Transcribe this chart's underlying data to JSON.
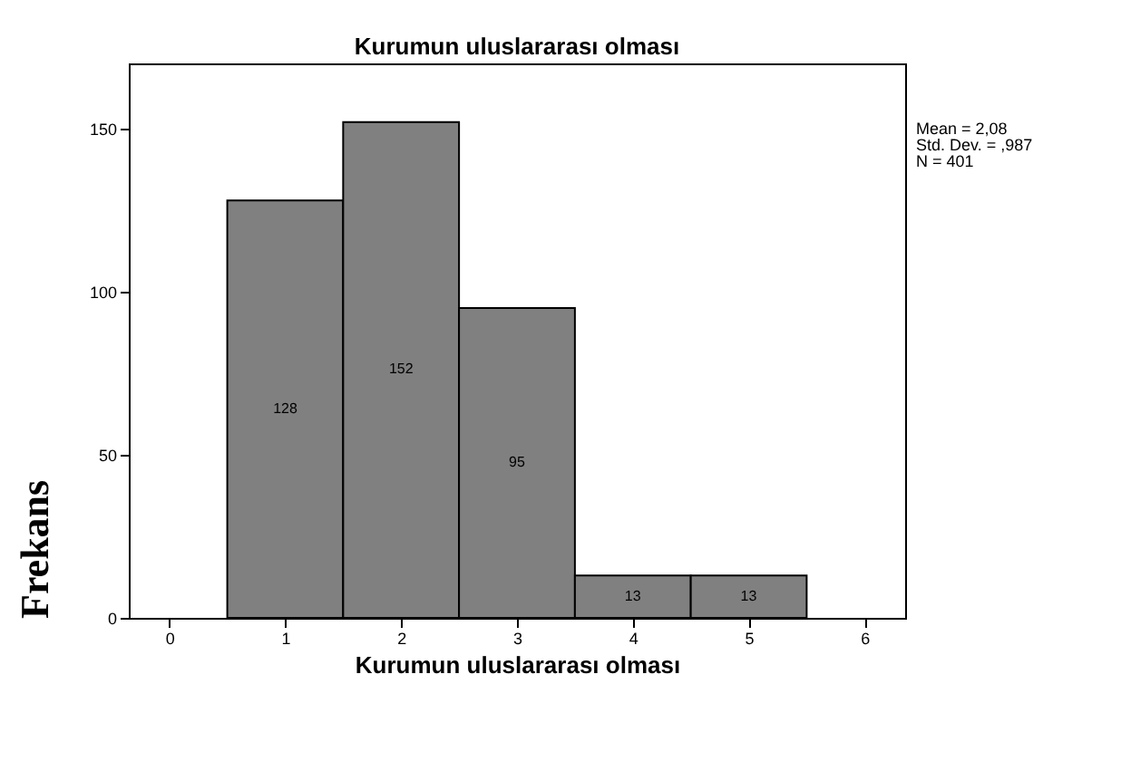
{
  "chart_data": {
    "type": "histogram",
    "title": "Kurumun uluslararası olması",
    "xlabel": "Kurumun uluslararası olması",
    "ylabel": "Frekans",
    "bins": [
      0.5,
      1.5,
      2.5,
      3.5,
      4.5,
      5.5
    ],
    "values": [
      128,
      152,
      95,
      13,
      13
    ],
    "color": "#808080",
    "xlim": [
      -0.35,
      6.35
    ],
    "xticks": [
      0,
      1,
      2,
      3,
      4,
      5,
      6
    ],
    "ylim": [
      0,
      170
    ],
    "yticks": [
      0,
      50,
      100,
      150
    ],
    "data_labels": true,
    "annotations": [
      "Mean = 2,08",
      "Std. Dev. = ,987",
      "N = 401"
    ]
  }
}
